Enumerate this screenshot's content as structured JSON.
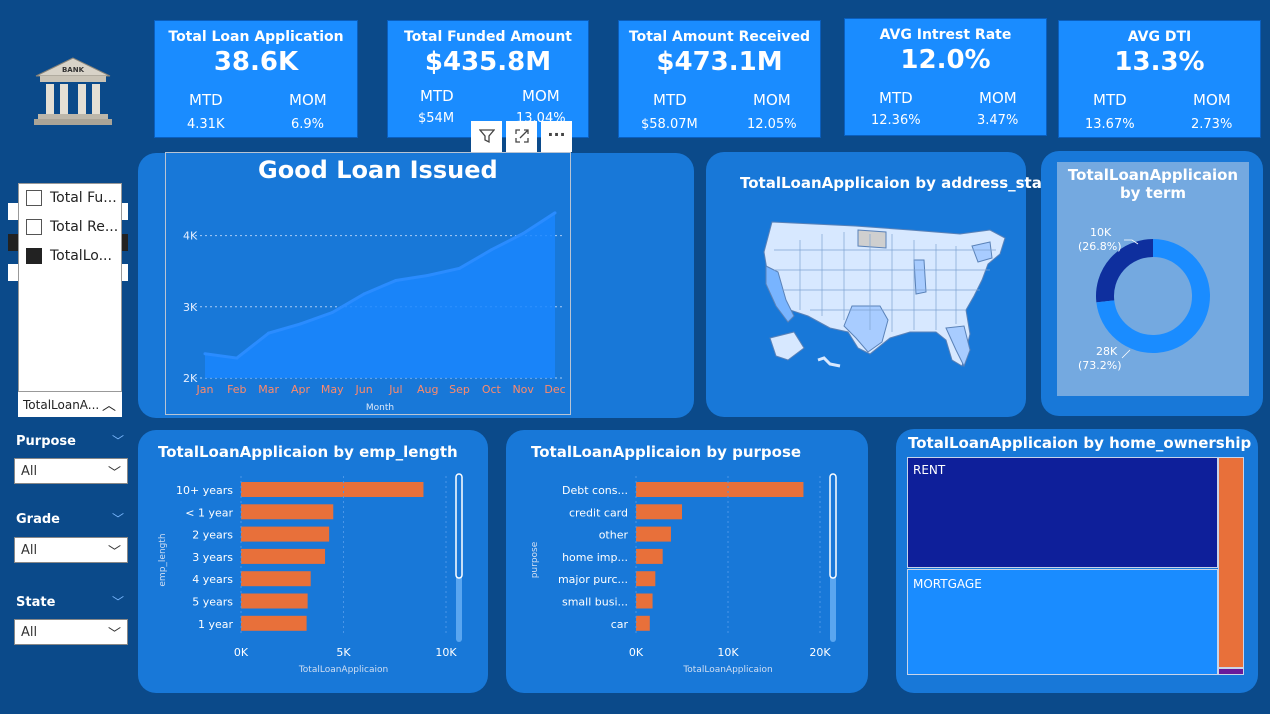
{
  "kpis": [
    {
      "title": "Total Loan Application",
      "value": "38.6K",
      "mtd_label": "MTD",
      "mom_label": "MOM",
      "mtd": "4.31K",
      "mom": "6.9%"
    },
    {
      "title": "Total Funded Amount",
      "value": "$435.8M",
      "mtd_label": "MTD",
      "mom_label": "MOM",
      "mtd": "$54M",
      "mom": "13.04%"
    },
    {
      "title": "Total Amount Received",
      "value": "$473.1M",
      "mtd_label": "MTD",
      "mom_label": "MOM",
      "mtd": "$58.07M",
      "mom": "12.05%"
    },
    {
      "title": "AVG Intrest Rate",
      "value": "12.0%",
      "mtd_label": "MTD",
      "mom_label": "MOM",
      "mtd": "12.36%",
      "mom": "3.47%"
    },
    {
      "title": "AVG DTI",
      "value": "13.3%",
      "mtd_label": "MTD",
      "mom_label": "MOM",
      "mtd": "13.67%",
      "mom": "2.73%"
    }
  ],
  "logo": {
    "text": "BANK"
  },
  "measure_slicer": {
    "items": [
      {
        "label": "Total Fu...",
        "checked": false
      },
      {
        "label": "Total Re...",
        "checked": false
      },
      {
        "label": "TotalLo...",
        "checked": true
      }
    ],
    "dropdown_label": "TotalLoanA..."
  },
  "filters": [
    {
      "label": "Purpose",
      "value": "All"
    },
    {
      "label": "Grade",
      "value": "All"
    },
    {
      "label": "State",
      "value": "All"
    }
  ],
  "colors": {
    "background": "#0b4a8a",
    "card": "#1878d8",
    "kpi": "#1a8cff",
    "bar": "#e8703a",
    "line": "#2a8cff",
    "donut_dark": "#0e2f9e",
    "donut_light": "#1a8cff"
  },
  "chart_data": [
    {
      "type": "area",
      "title": "Good Loan Issued",
      "xlabel": "Month",
      "ylabel": "",
      "categories": [
        "Jan",
        "Feb",
        "Mar",
        "Apr",
        "May",
        "Jun",
        "Jul",
        "Aug",
        "Sep",
        "Oct",
        "Nov",
        "Dec"
      ],
      "values": [
        2340,
        2280,
        2630,
        2760,
        2920,
        3180,
        3370,
        3440,
        3540,
        3800,
        4030,
        4320
      ],
      "yticks": [
        "2K",
        "3K",
        "4K"
      ],
      "ylim": [
        2000,
        4500
      ]
    },
    {
      "type": "bar",
      "title": "TotalLoanApplicaion by emp_length",
      "xlabel": "TotalLoanApplicaion",
      "ylabel": "emp_length",
      "categories": [
        "10+ years",
        "< 1 year",
        "2 years",
        "3 years",
        "4 years",
        "5 years",
        "1 year"
      ],
      "values": [
        8900,
        4500,
        4300,
        4100,
        3400,
        3250,
        3200
      ],
      "xticks": [
        "0K",
        "5K",
        "10K"
      ],
      "xlim": [
        0,
        10000
      ]
    },
    {
      "type": "bar",
      "title": "TotalLoanApplicaion by purpose",
      "xlabel": "TotalLoanApplicaion",
      "ylabel": "purpose",
      "categories": [
        "Debt cons...",
        "credit card",
        "other",
        "home imp...",
        "major purc...",
        "small busi...",
        "car"
      ],
      "values": [
        18200,
        5000,
        3800,
        2900,
        2100,
        1800,
        1500
      ],
      "xticks": [
        "0K",
        "10K",
        "20K"
      ],
      "xlim": [
        0,
        20000
      ]
    },
    {
      "type": "pie",
      "title": "TotalLoanApplicaion by term",
      "labels": [
        "10K (26.8%)",
        "28K (73.2%)"
      ],
      "label_values": [
        "10K",
        "28K"
      ],
      "label_pcts": [
        "(26.8%)",
        "(73.2%)"
      ],
      "values": [
        26.8,
        73.2
      ]
    },
    {
      "type": "treemap",
      "title": "TotalLoanApplicaion by home_ownership",
      "labels": [
        "RENT",
        "MORTGAGE"
      ]
    }
  ],
  "map_title": "TotalLoanApplicaion by address_state",
  "visual_header": {
    "filter_icon": "filter-icon",
    "focus_icon": "focus-mode-icon",
    "more_icon": "more-options-icon",
    "more_glyph": "···"
  }
}
